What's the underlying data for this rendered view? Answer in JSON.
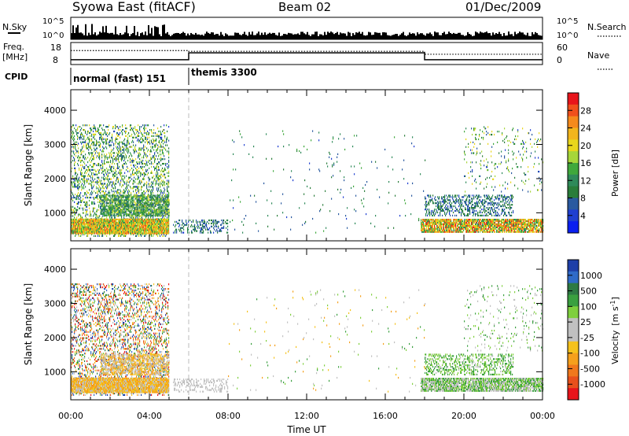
{
  "header": {
    "station": "Syowa East (fitACF)",
    "beam": "Beam 02",
    "date": "01/Dec/2009"
  },
  "top_panels": {
    "nsky_label": "N.Sky",
    "nsky_ticks": [
      "10^5",
      "10^0"
    ],
    "nsearch_label": "N.Search",
    "nsearch_ticks": [
      "10^5",
      "10^0"
    ],
    "freq_label_1": "Freq.",
    "freq_label_2": "[MHz]",
    "freq_ticks": [
      "18",
      "8"
    ],
    "nave_label": "Nave",
    "nave_ticks": [
      "60",
      "0"
    ],
    "cpid_label": "CPID",
    "cpid_modes": [
      {
        "name": "normal (fast) 151",
        "start_hour": 0,
        "end_hour": 6
      },
      {
        "name": "themis 3300",
        "start_hour": 6,
        "end_hour": 24
      }
    ]
  },
  "power_colorbar": {
    "label": "Power [dB]",
    "ticks": [
      "28",
      "24",
      "20",
      "16",
      "12",
      "8",
      "4"
    ],
    "colors": [
      "#e8141b",
      "#f0501c",
      "#f58a1c",
      "#f2b51c",
      "#e8d61c",
      "#a6d63a",
      "#3fa83c",
      "#2f8a5a",
      "#2a7d3a",
      "#2a5aa0",
      "#1f3fd0",
      "#0a1ff0"
    ]
  },
  "velocity_colorbar": {
    "label_main": "Velocity",
    "label_units": "[m s",
    "label_exp": "-1",
    "label_close": "]",
    "ticks": [
      "1000",
      "500",
      "100",
      "25",
      "-25",
      "-100",
      "-500",
      "-1000"
    ],
    "colors": [
      "#1e3fa8",
      "#2f6ac8",
      "#2e7a44",
      "#3aa040",
      "#7fcf3e",
      "#c0c0c0",
      "#c0c0c0",
      "#f5c21c",
      "#f5a01c",
      "#f0781c",
      "#e8501c",
      "#e8141b"
    ]
  },
  "axes": {
    "ylabel": "Slant Range [km]",
    "yticks": [
      "4000",
      "3000",
      "2000",
      "1000"
    ],
    "xticks": [
      "00:00",
      "04:00",
      "08:00",
      "12:00",
      "16:00",
      "20:00",
      "00:00"
    ],
    "xlabel": "Time UT"
  },
  "chart_data": [
    {
      "type": "heatmap",
      "title": "",
      "variable": "Power",
      "xlabel": "Time UT",
      "ylabel": "Slant Range [km]",
      "xlim": [
        0,
        24
      ],
      "ylim": [
        180,
        4600
      ],
      "zlim": [
        0,
        30
      ],
      "regions": [
        {
          "t0": 0.0,
          "t1": 5.0,
          "r0": 300,
          "r1": 3550,
          "density": 0.28,
          "z": [
            4,
            20
          ]
        },
        {
          "t0": 0.0,
          "t1": 5.0,
          "r0": 380,
          "r1": 800,
          "density": 0.95,
          "z": [
            12,
            26
          ]
        },
        {
          "t0": 1.5,
          "t1": 5.0,
          "r0": 900,
          "r1": 1500,
          "density": 0.65,
          "z": [
            6,
            18
          ]
        },
        {
          "t0": 5.2,
          "t1": 8.0,
          "r0": 400,
          "r1": 800,
          "density": 0.3,
          "z": [
            4,
            12
          ]
        },
        {
          "t0": 17.8,
          "t1": 24.0,
          "r0": 420,
          "r1": 800,
          "density": 0.85,
          "z": [
            10,
            28
          ]
        },
        {
          "t0": 18.0,
          "t1": 22.5,
          "r0": 900,
          "r1": 1500,
          "density": 0.35,
          "z": [
            4,
            12
          ]
        },
        {
          "t0": 8.0,
          "t1": 18.0,
          "r0": 400,
          "r1": 3400,
          "density": 0.012,
          "z": [
            4,
            14
          ]
        },
        {
          "t0": 20.0,
          "t1": 24.0,
          "r0": 1600,
          "r1": 3500,
          "density": 0.05,
          "z": [
            4,
            20
          ]
        }
      ]
    },
    {
      "type": "heatmap",
      "title": "",
      "variable": "Velocity",
      "xlabel": "Time UT",
      "ylabel": "Slant Range [km]",
      "xlim": [
        0,
        24
      ],
      "ylim": [
        180,
        4600
      ],
      "zlim": [
        -1000,
        1000
      ],
      "regions": [
        {
          "t0": 0.0,
          "t1": 5.0,
          "r0": 300,
          "r1": 3550,
          "density": 0.28,
          "z": [
            -1000,
            1000
          ]
        },
        {
          "t0": 0.0,
          "t1": 5.0,
          "r0": 380,
          "r1": 800,
          "density": 0.95,
          "z": [
            -500,
            -25
          ]
        },
        {
          "t0": 1.5,
          "t1": 5.0,
          "r0": 900,
          "r1": 1500,
          "density": 0.55,
          "z": [
            -500,
            100
          ]
        },
        {
          "t0": 5.2,
          "t1": 8.0,
          "r0": 400,
          "r1": 800,
          "density": 0.3,
          "z": [
            -25,
            25
          ]
        },
        {
          "t0": 17.8,
          "t1": 24.0,
          "r0": 420,
          "r1": 800,
          "density": 0.85,
          "z": [
            -100,
            500
          ]
        },
        {
          "t0": 18.0,
          "t1": 22.5,
          "r0": 900,
          "r1": 1500,
          "density": 0.35,
          "z": [
            100,
            500
          ]
        },
        {
          "t0": 8.0,
          "t1": 18.0,
          "r0": 400,
          "r1": 3400,
          "density": 0.012,
          "z": [
            -500,
            500
          ]
        },
        {
          "t0": 20.0,
          "t1": 24.0,
          "r0": 1600,
          "r1": 3500,
          "density": 0.05,
          "z": [
            -100,
            500
          ]
        }
      ]
    },
    {
      "type": "line",
      "title": "",
      "variable": "Freq. [MHz]",
      "ylim": [
        8,
        18
      ],
      "series": [
        {
          "x": [
            0,
            5,
            5,
            6,
            6,
            18,
            18,
            24
          ],
          "y": [
            10.2,
            10.2,
            10.2,
            10.2,
            13.3,
            13.3,
            10.2,
            10.2
          ]
        }
      ]
    },
    {
      "type": "line",
      "title": "",
      "variable": "Nave",
      "ylim": [
        0,
        60
      ],
      "series": [
        {
          "x": [
            0,
            6,
            6,
            18,
            18,
            24
          ],
          "y": [
            38,
            38,
            36,
            36,
            28,
            28
          ]
        }
      ]
    }
  ]
}
